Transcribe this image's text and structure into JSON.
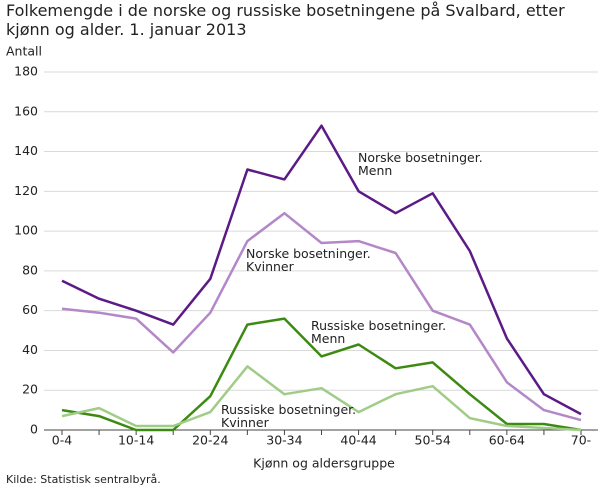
{
  "chart_data": {
    "type": "line",
    "title": "Folkemengde i de norske og russiske bosetningene på Svalbard, etter kjønn og alder. 1. januar 2013",
    "y_label": "Antall",
    "x_label": "Kjønn og aldersgruppe",
    "source": "Kilde: Statistisk sentralbyrå.",
    "categories": [
      "0-4",
      null,
      "10-14",
      null,
      "20-24",
      null,
      "30-34",
      null,
      "40-44",
      null,
      "50-54",
      null,
      "60-64",
      null,
      "70-"
    ],
    "ylim": [
      0,
      180
    ],
    "yticks": [
      0,
      20,
      40,
      60,
      80,
      100,
      120,
      140,
      160,
      180
    ],
    "grid": true,
    "series": [
      {
        "name": "Norske bosetninger. Menn",
        "color": "#5c1a87",
        "values": [
          75,
          66,
          60,
          53,
          76,
          131,
          126,
          153,
          120,
          109,
          119,
          90,
          46,
          18,
          8
        ]
      },
      {
        "name": "Norske bosetninger. Kvinner",
        "color": "#b487c8",
        "values": [
          61,
          59,
          56,
          39,
          59,
          95,
          109,
          94,
          95,
          89,
          60,
          53,
          24,
          10,
          5
        ]
      },
      {
        "name": "Russiske bosetninger. Menn",
        "color": "#3d8a12",
        "values": [
          10,
          7,
          0,
          0,
          17,
          53,
          56,
          37,
          43,
          31,
          34,
          18,
          3,
          3,
          0
        ]
      },
      {
        "name": "Russiske bosetninger. Kvinner",
        "color": "#a0cc88",
        "values": [
          7,
          11,
          2,
          2,
          9,
          32,
          18,
          21,
          9,
          18,
          22,
          6,
          2,
          1,
          0
        ]
      }
    ]
  }
}
